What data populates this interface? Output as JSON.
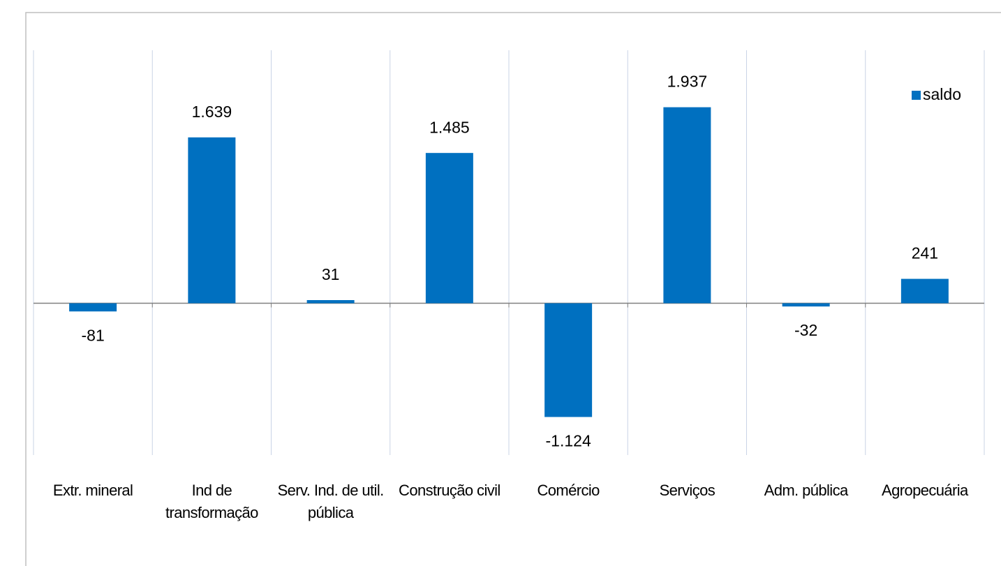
{
  "chart_data": {
    "type": "bar",
    "categories": [
      "Extr. mineral",
      "Ind de transformação",
      "Serv. Ind. de util. pública",
      "Construção civil",
      "Comércio",
      "Serviços",
      "Adm. pública",
      "Agropecuária"
    ],
    "series": [
      {
        "name": "saldo",
        "color": "#0070c0",
        "values": [
          -81,
          1639,
          31,
          1485,
          -1124,
          1937,
          -32,
          241
        ],
        "value_labels": [
          "-81",
          "1.639",
          "31",
          "1.485",
          "-1.124",
          "1.937",
          "-32",
          "241"
        ]
      }
    ],
    "ylim": [
      -1500,
      2500
    ],
    "grid": true,
    "legend": "top-right"
  }
}
